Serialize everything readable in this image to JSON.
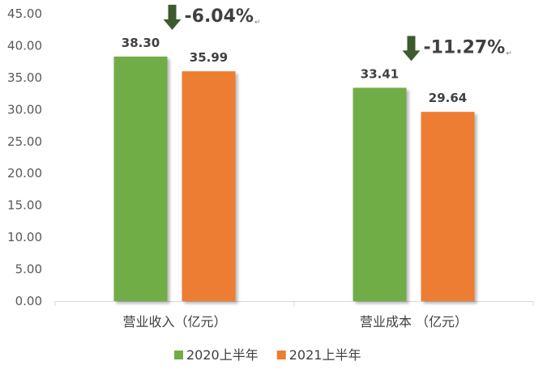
{
  "chart_data": {
    "type": "bar",
    "categories": [
      "营业收入（亿元）",
      "营业成本 （亿元）"
    ],
    "series": [
      {
        "name": "2020上半年",
        "values": [
          38.3,
          33.41
        ]
      },
      {
        "name": "2021上半年",
        "values": [
          35.99,
          29.64
        ]
      }
    ],
    "value_labels": [
      [
        "38.30",
        "33.41"
      ],
      [
        "35.99",
        "29.64"
      ]
    ],
    "changes": [
      "-6.04%",
      "-11.27%"
    ],
    "ylim": [
      0,
      45
    ],
    "yticks": [
      "0.00",
      "5.00",
      "10.00",
      "15.00",
      "20.00",
      "25.00",
      "30.00",
      "35.00",
      "40.00",
      "45.00"
    ],
    "grid": false,
    "legend": "bottom",
    "colors": {
      "series": [
        "#70ad47",
        "#ed7d31"
      ],
      "arrow": "#3d5b2e"
    }
  }
}
